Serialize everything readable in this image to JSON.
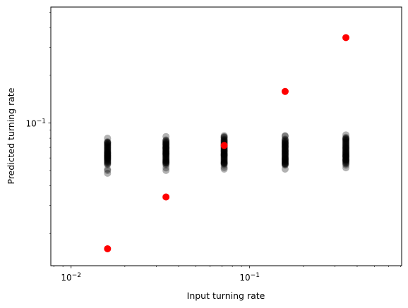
{
  "chart_data": {
    "type": "scatter",
    "title": "",
    "xlabel": "Input turning rate",
    "ylabel": "Predicted turning rate",
    "xscale": "log",
    "yscale": "log",
    "xlim": [
      0.0077,
      0.71
    ],
    "ylim": [
      0.0125,
      0.54
    ],
    "grid": false,
    "x_tick_labels": [
      {
        "value": 0.01,
        "base": "10",
        "exp": "−2"
      },
      {
        "value": 0.1,
        "base": "10",
        "exp": "−1"
      }
    ],
    "y_tick_labels": [
      {
        "value": 0.1,
        "base": "10",
        "exp": "−1"
      }
    ],
    "series": [
      {
        "marker_color": "#000000",
        "marker_alpha": 0.3,
        "clusters": [
          {
            "x": 0.016,
            "y_min": 0.048,
            "y_max": 0.08,
            "y_dense_min": 0.055,
            "y_dense_max": 0.076
          },
          {
            "x": 0.034,
            "y_min": 0.05,
            "y_max": 0.082,
            "y_dense_min": 0.055,
            "y_dense_max": 0.078
          },
          {
            "x": 0.072,
            "y_min": 0.051,
            "y_max": 0.083,
            "y_dense_min": 0.055,
            "y_dense_max": 0.079
          },
          {
            "x": 0.158,
            "y_min": 0.051,
            "y_max": 0.083,
            "y_dense_min": 0.054,
            "y_dense_max": 0.079
          },
          {
            "x": 0.346,
            "y_min": 0.052,
            "y_max": 0.084,
            "y_dense_min": 0.055,
            "y_dense_max": 0.08
          }
        ]
      },
      {
        "marker_color": "#ff0000",
        "points": [
          {
            "x": 0.016,
            "y": 0.016
          },
          {
            "x": 0.034,
            "y": 0.034
          },
          {
            "x": 0.072,
            "y": 0.072
          },
          {
            "x": 0.158,
            "y": 0.158
          },
          {
            "x": 0.346,
            "y": 0.346
          }
        ]
      }
    ]
  }
}
